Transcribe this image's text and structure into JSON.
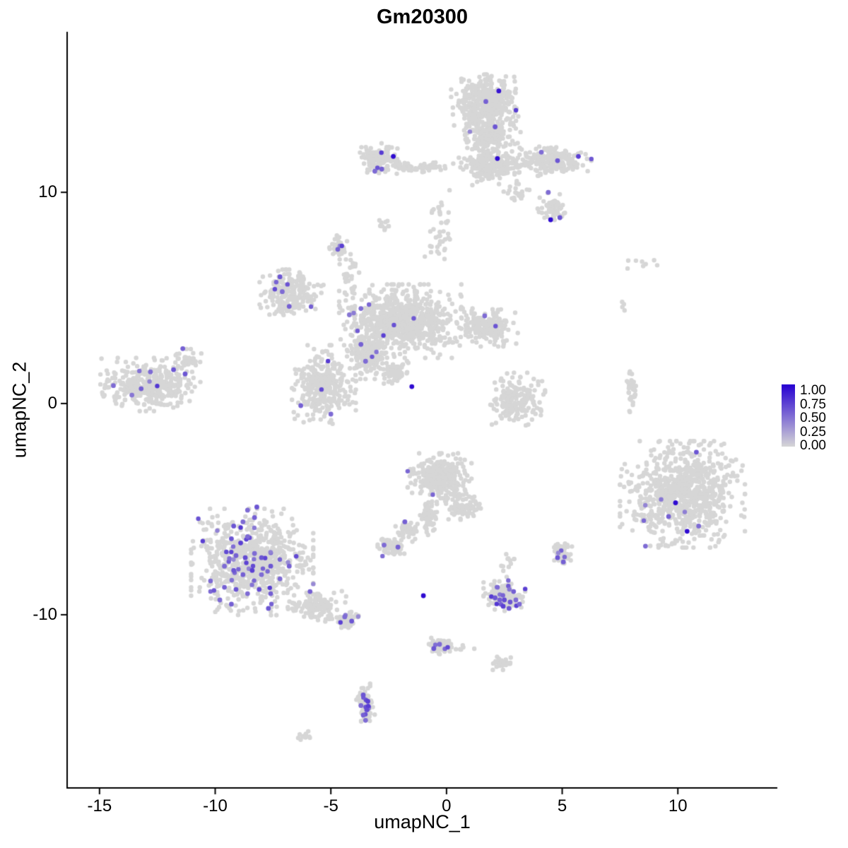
{
  "chart_data": {
    "type": "scatter",
    "title": "Gm20300",
    "xlabel": "umapNC_1",
    "ylabel": "umapNC_2",
    "xlim": [
      -16.4,
      14.3
    ],
    "ylim": [
      -18.2,
      17.6
    ],
    "x_ticks": [
      "-15",
      "-10",
      "-5",
      "0",
      "5",
      "10"
    ],
    "x_tick_values": [
      -15,
      -10,
      -5,
      0,
      5,
      10
    ],
    "y_ticks": [
      "-10",
      "0",
      "10"
    ],
    "y_tick_values": [
      -10,
      0,
      10
    ],
    "grid": false,
    "point_radius": 3.2,
    "seed": 42,
    "colors": {
      "low": "#D6D6D6",
      "high": "#2600D1",
      "axis": "#000000",
      "background": "#FFFFFF"
    },
    "legend": {
      "position": "right",
      "labels": [
        "1.00",
        "0.75",
        "0.50",
        "0.25",
        "0.00"
      ],
      "values": [
        1.0,
        0.75,
        0.5,
        0.25,
        0.0
      ]
    },
    "clusters": [
      {
        "x": 1.7,
        "y": 14.2,
        "rx": 1.25,
        "ry": 1.15,
        "n": 420,
        "rate": 0.004
      },
      {
        "x": 1.9,
        "y": 12.7,
        "rx": 1.0,
        "ry": 0.7,
        "n": 180,
        "rate": 0.003
      },
      {
        "x": 1.9,
        "y": 11.3,
        "rx": 1.15,
        "ry": 0.8,
        "n": 230,
        "rate": 0.003
      },
      {
        "x": 4.4,
        "y": 11.5,
        "rx": 1.55,
        "ry": 0.6,
        "n": 210,
        "rate": 0.008
      },
      {
        "x": 4.6,
        "y": 9.2,
        "rx": 0.55,
        "ry": 0.65,
        "n": 65,
        "rate": 0.0
      },
      {
        "x": -2.9,
        "y": 11.6,
        "rx": 0.7,
        "ry": 0.6,
        "n": 140,
        "rate": 0.008
      },
      {
        "x": -1.2,
        "y": 11.2,
        "rx": 1.5,
        "ry": 0.28,
        "n": 60,
        "rate": 0.0
      },
      {
        "x": 3.0,
        "y": 9.9,
        "rx": 0.5,
        "ry": 0.45,
        "n": 22,
        "rate": 0.0
      },
      {
        "x": -0.3,
        "y": 8.3,
        "rx": 0.6,
        "ry": 1.5,
        "n": 40,
        "rate": 0.0
      },
      {
        "x": -2.75,
        "y": 8.5,
        "rx": 0.3,
        "ry": 0.3,
        "n": 10,
        "rate": 0.0
      },
      {
        "x": -4.6,
        "y": 7.4,
        "rx": 0.42,
        "ry": 0.48,
        "n": 42,
        "rate": 0.015
      },
      {
        "x": -4.2,
        "y": 5.9,
        "rx": 0.35,
        "ry": 0.95,
        "n": 28,
        "rate": 0.0
      },
      {
        "x": -6.7,
        "y": 5.2,
        "rx": 1.15,
        "ry": 0.95,
        "n": 220,
        "rate": 0.01
      },
      {
        "x": -2.0,
        "y": 3.9,
        "rx": 2.2,
        "ry": 1.45,
        "n": 830,
        "rate": 0.004
      },
      {
        "x": 1.7,
        "y": 3.6,
        "rx": 1.15,
        "ry": 0.75,
        "n": 190,
        "rate": 0.004
      },
      {
        "x": -5.3,
        "y": 0.9,
        "rx": 1.15,
        "ry": 1.55,
        "n": 320,
        "rate": 0.007
      },
      {
        "x": -3.4,
        "y": 2.3,
        "rx": 0.75,
        "ry": 0.95,
        "n": 150,
        "rate": 0.009
      },
      {
        "x": -2.2,
        "y": 1.5,
        "rx": 0.55,
        "ry": 0.6,
        "n": 70,
        "rate": 0.0
      },
      {
        "x": -12.8,
        "y": 0.9,
        "rx": 1.8,
        "ry": 1.05,
        "n": 370,
        "rate": 0.022
      },
      {
        "x": -11.2,
        "y": 2.1,
        "rx": 0.5,
        "ry": 0.4,
        "n": 38,
        "rate": 0.02
      },
      {
        "x": 3.0,
        "y": 0.2,
        "rx": 1.05,
        "ry": 1.05,
        "n": 185,
        "rate": 0.0
      },
      {
        "x": 8.0,
        "y": 0.5,
        "rx": 0.2,
        "ry": 0.85,
        "n": 36,
        "rate": 0.0
      },
      {
        "x": 8.3,
        "y": 6.6,
        "rx": 1.3,
        "ry": 0.35,
        "n": 8,
        "rate": 0.0
      },
      {
        "x": 7.7,
        "y": 4.6,
        "rx": 0.35,
        "ry": 0.3,
        "n": 4,
        "rate": 0.0
      },
      {
        "x": 10.2,
        "y": -4.3,
        "rx": 2.25,
        "ry": 2.1,
        "n": 840,
        "rate": 0.005
      },
      {
        "x": -8.4,
        "y": -7.5,
        "rx": 2.2,
        "ry": 2.1,
        "n": 780,
        "rate": 0.045
      },
      {
        "x": -5.6,
        "y": -9.6,
        "rx": 1.05,
        "ry": 0.6,
        "n": 125,
        "rate": 0.02
      },
      {
        "x": -4.3,
        "y": -10.2,
        "rx": 0.42,
        "ry": 0.38,
        "n": 48,
        "rate": 0.04
      },
      {
        "x": -0.3,
        "y": -3.5,
        "rx": 1.15,
        "ry": 0.95,
        "n": 320,
        "rate": 0.003
      },
      {
        "x": 0.7,
        "y": -4.9,
        "rx": 0.65,
        "ry": 0.5,
        "n": 85,
        "rate": 0.0
      },
      {
        "x": -0.8,
        "y": -5.3,
        "rx": 0.32,
        "ry": 0.85,
        "n": 65,
        "rate": 0.0
      },
      {
        "x": -1.7,
        "y": -6.0,
        "rx": 0.42,
        "ry": 0.45,
        "n": 55,
        "rate": 0.01
      },
      {
        "x": -2.4,
        "y": -6.8,
        "rx": 0.48,
        "ry": 0.42,
        "n": 62,
        "rate": 0.025
      },
      {
        "x": 2.6,
        "y": -7.6,
        "rx": 0.45,
        "ry": 0.55,
        "n": 12,
        "rate": 0.0
      },
      {
        "x": 2.5,
        "y": -9.1,
        "rx": 0.75,
        "ry": 0.6,
        "n": 135,
        "rate": 0.06
      },
      {
        "x": 5.0,
        "y": -7.1,
        "rx": 0.36,
        "ry": 0.48,
        "n": 52,
        "rate": 0.035
      },
      {
        "x": -0.3,
        "y": -11.5,
        "rx": 0.48,
        "ry": 0.36,
        "n": 48,
        "rate": 0.04
      },
      {
        "x": 0.6,
        "y": -11.6,
        "rx": 0.5,
        "ry": 0.18,
        "n": 9,
        "rate": 0.0
      },
      {
        "x": 2.3,
        "y": -12.3,
        "rx": 0.52,
        "ry": 0.26,
        "n": 28,
        "rate": 0.0
      },
      {
        "x": -3.5,
        "y": -14.2,
        "rx": 0.33,
        "ry": 0.8,
        "n": 80,
        "rate": 0.09
      },
      {
        "x": -6.1,
        "y": -15.7,
        "rx": 0.26,
        "ry": 0.18,
        "n": 13,
        "rate": 0.0
      }
    ],
    "expressed_points": [
      [
        2.26,
        14.8,
        0.9
      ],
      [
        1.7,
        14.3,
        0.55
      ],
      [
        2.1,
        13.1,
        0.6
      ],
      [
        2.2,
        11.6,
        0.95
      ],
      [
        4.1,
        11.9,
        0.5
      ],
      [
        4.8,
        11.5,
        0.6
      ],
      [
        5.7,
        11.7,
        0.7
      ],
      [
        4.4,
        10.0,
        0.5
      ],
      [
        4.5,
        8.7,
        0.95
      ],
      [
        4.9,
        8.8,
        0.6
      ],
      [
        -2.3,
        11.7,
        0.95
      ],
      [
        -3.1,
        11.0,
        0.5
      ],
      [
        -2.8,
        11.1,
        0.55
      ],
      [
        -4.7,
        7.3,
        0.55
      ],
      [
        -7.2,
        6.0,
        0.6
      ],
      [
        -7.1,
        5.3,
        0.5
      ],
      [
        -6.8,
        4.6,
        0.55
      ],
      [
        -3.7,
        4.5,
        0.5
      ],
      [
        -4.2,
        4.2,
        0.45
      ],
      [
        1.65,
        4.15,
        0.5
      ],
      [
        -3.7,
        2.8,
        0.55
      ],
      [
        -3.5,
        2.0,
        0.5
      ],
      [
        -1.5,
        0.8,
        0.95
      ],
      [
        -6.3,
        -0.1,
        0.55
      ],
      [
        -5.0,
        -0.5,
        0.5
      ],
      [
        -14.4,
        0.85,
        0.5
      ],
      [
        -13.2,
        0.7,
        0.55
      ],
      [
        -12.8,
        1.5,
        0.5
      ],
      [
        -11.8,
        1.6,
        0.6
      ],
      [
        -11.3,
        1.4,
        0.6
      ],
      [
        -13.6,
        0.4,
        0.45
      ],
      [
        -11.4,
        2.6,
        0.55
      ],
      [
        9.9,
        -4.7,
        0.95
      ],
      [
        10.8,
        -2.3,
        0.6
      ],
      [
        9.6,
        -5.35,
        0.55
      ],
      [
        10.4,
        -6.05,
        0.95
      ],
      [
        10.9,
        -5.8,
        0.5
      ],
      [
        8.6,
        -6.75,
        0.5
      ],
      [
        -9.2,
        -5.8,
        0.6
      ],
      [
        -8.8,
        -5.6,
        0.5
      ],
      [
        -8.3,
        -5.4,
        0.55
      ],
      [
        -9.3,
        -6.4,
        0.6
      ],
      [
        -8.9,
        -6.6,
        0.7
      ],
      [
        -8.6,
        -6.3,
        0.5
      ],
      [
        -9.1,
        -7.2,
        0.55
      ],
      [
        -8.7,
        -7.3,
        0.65
      ],
      [
        -8.3,
        -7.1,
        0.5
      ],
      [
        -8.0,
        -7.3,
        0.6
      ],
      [
        -9.6,
        -7.7,
        0.5
      ],
      [
        -9.2,
        -7.9,
        0.6
      ],
      [
        -8.8,
        -8.1,
        0.55
      ],
      [
        -8.4,
        -7.9,
        0.7
      ],
      [
        -8.0,
        -8.1,
        0.5
      ],
      [
        -7.6,
        -7.7,
        0.6
      ],
      [
        -10.2,
        -8.4,
        0.5
      ],
      [
        -9.6,
        -8.7,
        0.55
      ],
      [
        -9.1,
        -8.8,
        0.6
      ],
      [
        -8.6,
        -9.0,
        0.5
      ],
      [
        -8.1,
        -8.8,
        0.65
      ],
      [
        -7.6,
        -9.0,
        0.55
      ],
      [
        -9.8,
        -9.3,
        0.5
      ],
      [
        -9.3,
        -9.5,
        0.55
      ],
      [
        -7.7,
        -9.7,
        0.6
      ],
      [
        -7.2,
        -8.3,
        0.5
      ],
      [
        -6.8,
        -7.7,
        0.55
      ],
      [
        -8.2,
        -4.9,
        0.6
      ],
      [
        -8.6,
        -5.05,
        0.5
      ],
      [
        -5.9,
        -8.9,
        0.55
      ],
      [
        -4.4,
        -10.1,
        0.5
      ],
      [
        -4.1,
        -10.3,
        0.6
      ],
      [
        -1.8,
        -5.6,
        0.55
      ],
      [
        -2.7,
        -6.7,
        0.5
      ],
      [
        -2.1,
        -6.8,
        0.55
      ],
      [
        -1.0,
        -9.1,
        0.95
      ],
      [
        2.1,
        -9.2,
        0.6
      ],
      [
        2.3,
        -9.3,
        0.55
      ],
      [
        2.5,
        -9.3,
        0.65
      ],
      [
        2.75,
        -9.4,
        0.6
      ],
      [
        3.0,
        -9.3,
        0.5
      ],
      [
        2.45,
        -9.6,
        0.7
      ],
      [
        2.7,
        -9.7,
        0.6
      ],
      [
        2.2,
        -8.7,
        0.5
      ],
      [
        2.9,
        -8.9,
        0.55
      ],
      [
        3.15,
        -9.5,
        0.5
      ],
      [
        4.8,
        -7.3,
        0.6
      ],
      [
        5.05,
        -7.5,
        0.55
      ],
      [
        -0.55,
        -11.6,
        0.6
      ],
      [
        -0.3,
        -11.4,
        0.5
      ],
      [
        -3.6,
        -13.8,
        0.6
      ],
      [
        -3.7,
        -14.3,
        0.5
      ],
      [
        -3.45,
        -14.5,
        0.65
      ],
      [
        -3.6,
        -14.75,
        0.55
      ],
      [
        -3.4,
        -14.1,
        0.7
      ],
      [
        -3.5,
        -15.0,
        0.5
      ]
    ]
  }
}
